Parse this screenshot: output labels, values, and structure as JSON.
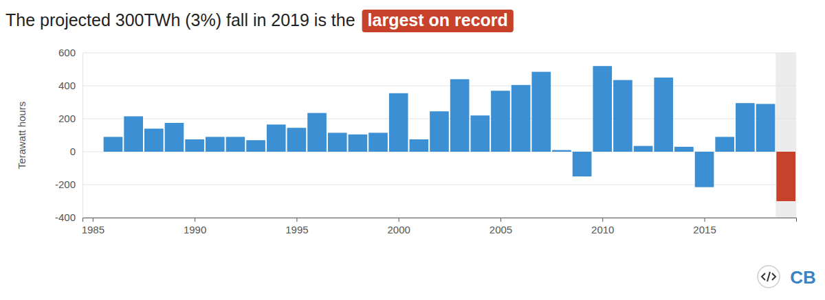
{
  "chart_data": {
    "type": "bar",
    "title": "The projected 300TWh (3%) fall in 2019 is the",
    "title_highlight": "largest on record",
    "y_label": "Terawatt hours",
    "logo": "CB",
    "x": [
      1986,
      1987,
      1988,
      1989,
      1990,
      1991,
      1992,
      1993,
      1994,
      1995,
      1996,
      1997,
      1998,
      1999,
      2000,
      2001,
      2002,
      2003,
      2004,
      2005,
      2006,
      2007,
      2008,
      2009,
      2010,
      2011,
      2012,
      2013,
      2014,
      2015,
      2016,
      2017,
      2018,
      2019
    ],
    "values": [
      90,
      215,
      140,
      175,
      75,
      90,
      90,
      70,
      165,
      145,
      235,
      115,
      105,
      115,
      355,
      75,
      245,
      440,
      220,
      370,
      405,
      485,
      10,
      -150,
      520,
      435,
      35,
      450,
      30,
      -215,
      90,
      295,
      290,
      -300
    ],
    "colors": [
      "#3b8fd2",
      "#3b8fd2",
      "#3b8fd2",
      "#3b8fd2",
      "#3b8fd2",
      "#3b8fd2",
      "#3b8fd2",
      "#3b8fd2",
      "#3b8fd2",
      "#3b8fd2",
      "#3b8fd2",
      "#3b8fd2",
      "#3b8fd2",
      "#3b8fd2",
      "#3b8fd2",
      "#3b8fd2",
      "#3b8fd2",
      "#3b8fd2",
      "#3b8fd2",
      "#3b8fd2",
      "#3b8fd2",
      "#3b8fd2",
      "#3b8fd2",
      "#3b8fd2",
      "#3b8fd2",
      "#3b8fd2",
      "#3b8fd2",
      "#3b8fd2",
      "#3b8fd2",
      "#3b8fd2",
      "#3b8fd2",
      "#3b8fd2",
      "#3b8fd2",
      "#c8412b"
    ],
    "xlim": [
      1984.5,
      2019.5
    ],
    "xticks": [
      1985,
      1990,
      1995,
      2000,
      2005,
      2010,
      2015
    ],
    "ylim": [
      -400,
      600
    ],
    "yticks": [
      -400,
      -200,
      0,
      200,
      400,
      600
    ],
    "grid": true
  }
}
